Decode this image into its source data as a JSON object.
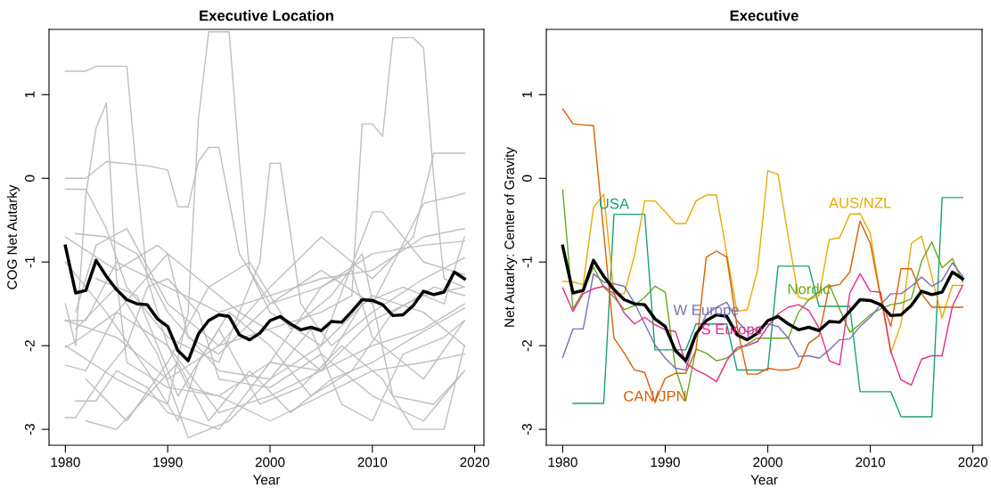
{
  "chart_data": [
    {
      "type": "line",
      "title": "Executive Location",
      "xlabel": "Year",
      "ylabel": "COG Net Autarky",
      "xlim": [
        1978.4,
        2020.9
      ],
      "ylim": [
        -3.19,
        1.78
      ],
      "xticks": [
        1980,
        1990,
        2000,
        2010,
        2020
      ],
      "yticks": [
        -3,
        -2,
        -1,
        0,
        1
      ],
      "grid": false,
      "marker": "none",
      "line_style": "solid",
      "series": [
        {
          "color": "#bebebe",
          "x": [
            1980,
            1982,
            1983,
            1986,
            1987,
            1988,
            1989,
            1990,
            1992,
            1995,
            2000,
            2005,
            2010,
            2015,
            2019
          ],
          "values": [
            1.28,
            1.28,
            1.34,
            1.34,
            0.0,
            -1.2,
            -1.6,
            -2.0,
            -2.5,
            -2.6,
            -2.2,
            -2.3,
            -2.0,
            -1.8,
            -1.5
          ]
        },
        {
          "color": "#bebebe",
          "x": [
            1980,
            1985,
            1990,
            1992,
            1993,
            1994,
            1996,
            1997,
            1998,
            2000,
            2005,
            2010,
            2015,
            2019
          ],
          "values": [
            -2.0,
            -2.4,
            -2.7,
            -1.6,
            0.7,
            1.75,
            1.75,
            0.2,
            -1.1,
            -1.6,
            -2.0,
            -1.4,
            -1.6,
            -2.0
          ]
        },
        {
          "color": "#bebebe",
          "x": [
            1980,
            1985,
            1990,
            1995,
            2000,
            2005,
            2008,
            2009,
            2010,
            2011,
            2012,
            2014,
            2015,
            2016,
            2017,
            2019
          ],
          "values": [
            -1.7,
            -1.9,
            -2.4,
            -2.0,
            -1.8,
            -1.6,
            -1.4,
            0.65,
            0.65,
            0.5,
            1.68,
            1.68,
            1.56,
            0.0,
            -1.2,
            -1.3
          ]
        },
        {
          "color": "#bebebe",
          "x": [
            1980,
            1981,
            1982,
            1983,
            1984,
            1985,
            1986,
            1990,
            1995,
            2000,
            2005,
            2010,
            2015,
            2019
          ],
          "values": [
            -1.5,
            -2.0,
            -0.2,
            0.6,
            0.9,
            -1.2,
            -2.2,
            -2.5,
            -2.6,
            -2.9,
            -2.6,
            -2.3,
            -2.2,
            -2.1
          ]
        },
        {
          "color": "#bebebe",
          "x": [
            1980,
            1982,
            1984,
            1988,
            1990,
            1991,
            1992,
            1993,
            1994,
            1995,
            1997,
            2000,
            2005,
            2010,
            2015,
            2019
          ],
          "values": [
            0.0,
            0.0,
            0.2,
            0.15,
            0.1,
            -0.34,
            -0.34,
            0.2,
            0.37,
            0.37,
            -0.9,
            -1.5,
            -1.3,
            -0.9,
            -0.8,
            -0.75
          ]
        },
        {
          "color": "#bebebe",
          "x": [
            1980,
            1982,
            1984,
            1986,
            1990,
            1995,
            1999,
            2000,
            2001,
            2003,
            2006,
            2010,
            2015,
            2019
          ],
          "values": [
            -0.13,
            -0.13,
            -0.6,
            -1.3,
            -1.9,
            -2.2,
            -1.0,
            0.18,
            0.18,
            -1.5,
            -2.0,
            -1.6,
            -1.2,
            -0.95
          ]
        },
        {
          "color": "#bebebe",
          "x": [
            1981,
            1984,
            1987,
            1990,
            1995,
            2000,
            2005,
            2010,
            2011,
            2015,
            2019
          ],
          "values": [
            -0.66,
            -0.7,
            -0.9,
            -1.6,
            -2.3,
            -2.4,
            -2.0,
            -0.4,
            -0.4,
            -1.0,
            -1.15
          ]
        },
        {
          "color": "#bebebe",
          "x": [
            1980,
            1982,
            1985,
            1990,
            1995,
            2000,
            2005,
            2010,
            2015,
            2019
          ],
          "values": [
            -1.7,
            -1.7,
            -1.0,
            -1.3,
            -1.6,
            -1.4,
            -1.2,
            -1.1,
            -0.7,
            -0.6
          ]
        },
        {
          "color": "#bebebe",
          "x": [
            1980,
            1981,
            1985,
            1990,
            1995,
            2000,
            2005,
            2010,
            2015,
            2019
          ],
          "values": [
            -2.02,
            -1.95,
            -1.6,
            -2.0,
            -2.8,
            -2.6,
            -2.3,
            -1.7,
            -1.4,
            -1.3
          ]
        },
        {
          "color": "#bebebe",
          "x": [
            1980,
            1981,
            1984,
            1986,
            1988,
            1990,
            1993,
            1995,
            2000,
            2005,
            2010,
            2015,
            2019
          ],
          "values": [
            -2.86,
            -2.86,
            -2.3,
            -2.0,
            -1.3,
            -1.2,
            -1.6,
            -2.4,
            -2.5,
            -2.1,
            -2.6,
            -2.9,
            -2.3
          ]
        },
        {
          "color": "#bebebe",
          "x": [
            1981,
            1983,
            1985,
            1988,
            1990,
            1995,
            2000,
            2005,
            2008,
            2010,
            2015,
            2019
          ],
          "values": [
            -2.66,
            -2.66,
            -2.3,
            -2.5,
            -2.8,
            -3.0,
            -2.2,
            -1.3,
            -1.1,
            -1.9,
            -2.4,
            -1.7
          ]
        },
        {
          "color": "#bebebe",
          "x": [
            1980,
            1982,
            1985,
            1990,
            1992,
            1995,
            2000,
            2005,
            2010,
            2015,
            2019
          ],
          "values": [
            -2.23,
            -2.3,
            -1.6,
            -0.9,
            -1.9,
            -2.1,
            -1.5,
            -1.1,
            -1.5,
            -0.3,
            -0.18
          ]
        },
        {
          "color": "#bebebe",
          "x": [
            1981,
            1983,
            1986,
            1990,
            1995,
            2000,
            2005,
            2010,
            2014,
            2016,
            2019
          ],
          "values": [
            -1.6,
            -0.8,
            -0.6,
            -1.5,
            -2.0,
            -1.3,
            -0.7,
            -1.2,
            -0.7,
            0.3,
            0.3
          ]
        },
        {
          "color": "#bebebe",
          "x": [
            1980,
            1984,
            1988,
            1991,
            1993,
            1996,
            2000,
            2004,
            2008,
            2012,
            2016,
            2019
          ],
          "values": [
            -1.0,
            -1.6,
            -2.3,
            -2.9,
            -2.2,
            -1.6,
            -2.0,
            -2.6,
            -2.3,
            -1.6,
            -1.3,
            -1.4
          ]
        },
        {
          "color": "#bebebe",
          "x": [
            1981,
            1985,
            1989,
            1992,
            1996,
            2000,
            2004,
            2007,
            2010,
            2013,
            2017,
            2019
          ],
          "values": [
            -1.8,
            -1.3,
            -2.1,
            -3.1,
            -2.9,
            -2.4,
            -1.8,
            -2.7,
            -2.9,
            -2.1,
            -1.9,
            -1.7
          ]
        },
        {
          "color": "#bebebe",
          "x": [
            1982,
            1986,
            1990,
            1994,
            1998,
            2002,
            2006,
            2009,
            2012,
            2016,
            2019
          ],
          "values": [
            -2.4,
            -2.9,
            -2.2,
            -1.3,
            -1.0,
            -1.8,
            -1.4,
            -0.9,
            -2.6,
            -2.7,
            -2.3
          ]
        },
        {
          "color": "#bebebe",
          "x": [
            1983,
            1987,
            1991,
            1995,
            1999,
            2003,
            2007,
            2011,
            2014,
            2017,
            2019
          ],
          "values": [
            -1.2,
            -1.4,
            -2.6,
            -1.8,
            -2.7,
            -2.5,
            -2.0,
            -2.4,
            -3.0,
            -3.0,
            -2.0
          ]
        },
        {
          "color": "#bebebe",
          "x": [
            1980,
            1985,
            1989,
            1993,
            1997,
            2001,
            2005,
            2009,
            2013,
            2017,
            2019
          ],
          "values": [
            -0.7,
            -1.1,
            -0.8,
            -1.2,
            -1.6,
            -1.9,
            -2.3,
            -1.5,
            -1.3,
            -1.5,
            -0.7
          ]
        },
        {
          "color": "#bebebe",
          "x": [
            1982,
            1985,
            1988,
            1991,
            1994,
            1998,
            2002,
            2006,
            2010,
            2014,
            2019
          ],
          "values": [
            -2.9,
            -3.0,
            -2.6,
            -2.2,
            -2.9,
            -2.3,
            -2.8,
            -2.4,
            -2.2,
            -1.9,
            -1.55
          ]
        },
        {
          "color": "#000000",
          "x": [
            1980,
            1981,
            1982,
            1983,
            1984,
            1985,
            1986,
            1987,
            1988,
            1989,
            1990,
            1991,
            1992,
            1993,
            1994,
            1995,
            1996,
            1997,
            1998,
            1999,
            2000,
            2001,
            2002,
            2003,
            2004,
            2005,
            2006,
            2007,
            2008,
            2009,
            2010,
            2011,
            2012,
            2013,
            2014,
            2015,
            2016,
            2017,
            2018,
            2019
          ],
          "values": [
            -0.81,
            -1.37,
            -1.34,
            -0.98,
            -1.17,
            -1.33,
            -1.45,
            -1.5,
            -1.51,
            -1.68,
            -1.77,
            -2.06,
            -2.18,
            -1.86,
            -1.7,
            -1.63,
            -1.65,
            -1.87,
            -1.93,
            -1.85,
            -1.7,
            -1.65,
            -1.74,
            -1.81,
            -1.78,
            -1.82,
            -1.71,
            -1.72,
            -1.59,
            -1.45,
            -1.46,
            -1.51,
            -1.64,
            -1.63,
            -1.52,
            -1.35,
            -1.39,
            -1.36,
            -1.12,
            -1.2
          ]
        }
      ]
    },
    {
      "type": "line",
      "title": "Executive",
      "xlabel": "Year",
      "ylabel": "Net Autarky: Center of Gravity",
      "xlim": [
        1978.4,
        2020.9
      ],
      "ylim": [
        -3.19,
        1.78
      ],
      "xticks": [
        1980,
        1990,
        2000,
        2010,
        2020
      ],
      "yticks": [
        -3,
        -2,
        -1,
        0,
        1
      ],
      "grid": false,
      "marker": "none",
      "line_style": "solid",
      "x": [
        1980,
        1981,
        1982,
        1983,
        1984,
        1985,
        1986,
        1987,
        1988,
        1989,
        1990,
        1991,
        1992,
        1993,
        1994,
        1995,
        1996,
        1997,
        1998,
        1999,
        2000,
        2001,
        2002,
        2003,
        2004,
        2005,
        2006,
        2007,
        2008,
        2009,
        2010,
        2011,
        2012,
        2013,
        2014,
        2015,
        2016,
        2017,
        2018,
        2019
      ],
      "annotations": [
        {
          "text": "USA",
          "x": 1985,
          "y": -0.43
        },
        {
          "text": "AUS/NZL",
          "x": 2009,
          "y": -0.42
        },
        {
          "text": "Nordic",
          "x": 2004,
          "y": -1.45
        },
        {
          "text": "W Europe",
          "x": 1994,
          "y": -1.7
        },
        {
          "text": "S Europe",
          "x": 1996.5,
          "y": -1.93
        },
        {
          "text": "CAN/JPN",
          "x": 1989,
          "y": -2.73
        }
      ],
      "series": [
        {
          "color": "#1b9e77",
          "values": [
            null,
            -2.69,
            -2.69,
            -2.69,
            -2.69,
            -0.43,
            -0.43,
            -0.43,
            -0.43,
            -2.05,
            -2.05,
            -2.05,
            -2.05,
            -1.74,
            -1.74,
            -1.74,
            -1.74,
            -2.29,
            -2.29,
            -2.29,
            -2.29,
            -1.05,
            -1.05,
            -1.05,
            -1.05,
            -1.53,
            -1.53,
            -1.53,
            -1.53,
            -2.55,
            -2.55,
            -2.55,
            -2.55,
            -2.85,
            -2.85,
            -2.85,
            -2.85,
            -0.23,
            -0.23,
            -0.23
          ]
        },
        {
          "color": "#e6ab02",
          "values": [
            -1.23,
            -1.24,
            -1.27,
            -0.35,
            -0.19,
            -1.38,
            -1.38,
            -0.92,
            -0.27,
            -0.27,
            -0.4,
            -0.54,
            -0.54,
            -0.27,
            -0.2,
            -0.2,
            -0.9,
            -1.59,
            -1.57,
            -1.1,
            0.09,
            0.05,
            -0.7,
            -1.42,
            -1.45,
            -1.4,
            -0.73,
            -0.71,
            -0.43,
            -0.42,
            -0.66,
            -1.42,
            -2.09,
            -1.74,
            -0.78,
            -0.69,
            -1.17,
            -1.67,
            -1.28,
            -1.28
          ]
        },
        {
          "color": "#66a61e",
          "values": [
            -0.14,
            -1.56,
            -1.35,
            -1.06,
            -1.3,
            -1.42,
            -1.57,
            -1.52,
            -1.42,
            -1.29,
            -1.36,
            -2.27,
            -2.66,
            -2.04,
            -2.09,
            -2.18,
            -2.15,
            -2.05,
            -1.98,
            -1.91,
            -1.91,
            -1.91,
            -1.91,
            -1.6,
            -1.45,
            -1.36,
            -1.27,
            -1.56,
            -1.84,
            -1.74,
            -1.63,
            -1.56,
            -1.51,
            -1.49,
            -1.44,
            -0.99,
            -0.76,
            -1.07,
            -0.96,
            -1.24
          ]
        },
        {
          "color": "#7570b3",
          "values": [
            -2.14,
            -1.8,
            -1.8,
            -1.14,
            -1.24,
            -1.26,
            -1.29,
            -1.49,
            -1.74,
            -1.99,
            -2.15,
            -2.27,
            -2.29,
            -1.88,
            -1.63,
            -1.54,
            -1.48,
            -1.7,
            -1.84,
            -1.79,
            -1.74,
            -1.77,
            -1.91,
            -2.13,
            -2.12,
            -2.15,
            -2.05,
            -1.93,
            -1.92,
            -1.77,
            -1.66,
            -1.51,
            -1.38,
            -1.38,
            -1.29,
            -1.18,
            -1.29,
            -1.22,
            -1.01,
            -1.17
          ]
        },
        {
          "color": "#e7298a",
          "values": [
            -1.31,
            -1.59,
            -1.38,
            -1.32,
            -1.29,
            -1.38,
            -1.61,
            -1.74,
            -1.66,
            -1.75,
            -1.81,
            -1.83,
            -2.21,
            -2.29,
            -2.35,
            -2.43,
            -2.18,
            -2.02,
            -2.0,
            -1.95,
            -1.77,
            -1.62,
            -1.54,
            -1.51,
            -1.58,
            -1.79,
            -2.18,
            -2.23,
            -1.37,
            -1.14,
            -1.35,
            -1.36,
            -2.07,
            -2.41,
            -2.47,
            -2.16,
            -2.12,
            -2.12,
            -1.53,
            -1.28
          ]
        },
        {
          "color": "#d95f02",
          "values": [
            0.83,
            0.65,
            0.64,
            0.63,
            -0.65,
            -1.91,
            -2.09,
            -2.29,
            -2.32,
            -2.68,
            -2.39,
            -2.33,
            -2.33,
            -2.05,
            -0.94,
            -0.87,
            -0.94,
            -1.77,
            -2.34,
            -2.34,
            -2.27,
            -2.29,
            -2.29,
            -2.26,
            -1.97,
            -1.88,
            -1.29,
            -1.27,
            -1.12,
            -0.51,
            -0.78,
            -1.42,
            -1.77,
            -1.08,
            -1.08,
            -1.38,
            -1.54,
            -1.54,
            -1.54,
            -1.54
          ]
        },
        {
          "color": "#000000",
          "values": [
            -0.81,
            -1.37,
            -1.34,
            -0.98,
            -1.17,
            -1.33,
            -1.45,
            -1.5,
            -1.51,
            -1.68,
            -1.77,
            -2.06,
            -2.18,
            -1.86,
            -1.7,
            -1.63,
            -1.65,
            -1.87,
            -1.93,
            -1.85,
            -1.7,
            -1.65,
            -1.74,
            -1.81,
            -1.78,
            -1.82,
            -1.71,
            -1.72,
            -1.59,
            -1.45,
            -1.46,
            -1.51,
            -1.64,
            -1.63,
            -1.52,
            -1.35,
            -1.39,
            -1.36,
            -1.12,
            -1.2
          ]
        }
      ]
    }
  ]
}
